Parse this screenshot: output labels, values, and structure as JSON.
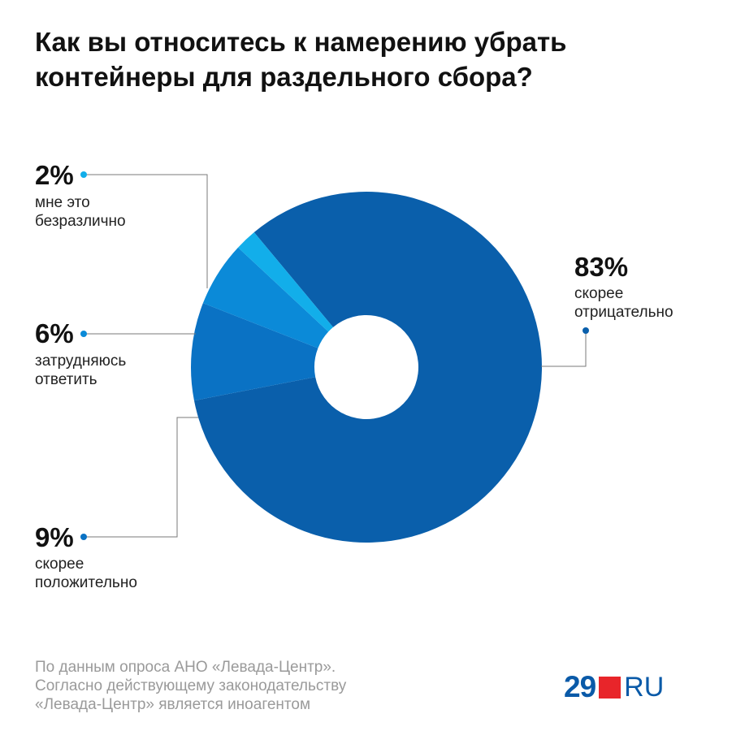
{
  "title": {
    "line1": "Как вы относитесь к намерению убрать",
    "line2": "контейнеры для раздельного сбора?"
  },
  "chart_data": {
    "type": "pie",
    "donut": true,
    "slices": [
      {
        "value": 83,
        "pct_label": "83%",
        "label_lines": [
          "скорее",
          "отрицательно"
        ],
        "color": "#0a5fab"
      },
      {
        "value": 9,
        "pct_label": "9%",
        "label_lines": [
          "скорее",
          "положительно"
        ],
        "color": "#0a72c4"
      },
      {
        "value": 6,
        "pct_label": "6%",
        "label_lines": [
          "затрудняюсь",
          "ответить"
        ],
        "color": "#0b8ad8"
      },
      {
        "value": 2,
        "pct_label": "2%",
        "label_lines": [
          "мне это",
          "безразлично"
        ],
        "color": "#12aeea"
      }
    ]
  },
  "footer": {
    "line1": "По данным опроса АНО «Левада-Центр».",
    "line2": "Согласно действующему законодательству",
    "line3": "«Левада-Центр» является иноагентом"
  },
  "logo": {
    "number": "29",
    "suffix": "RU",
    "square_color": "#e8252a",
    "text_color": "#0a5aa8"
  }
}
